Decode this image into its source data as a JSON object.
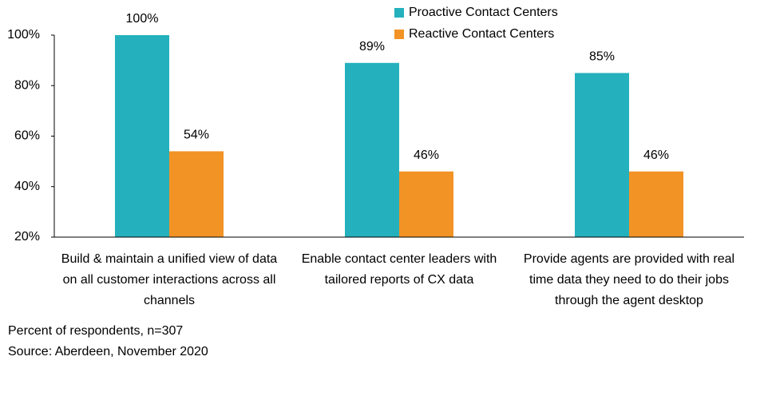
{
  "chart_data": {
    "type": "bar",
    "categories": [
      "Build & maintain a unified view of data on all customer interactions across all channels",
      "Enable contact center leaders with tailored reports of CX data",
      "Provide agents are provided with real time data they need to do their jobs through the agent desktop"
    ],
    "series": [
      {
        "name": "Proactive Contact Centers",
        "color": "#24b1bd",
        "values": [
          100,
          89,
          85
        ],
        "value_labels": [
          "100%",
          "89%",
          "85%"
        ]
      },
      {
        "name": "Reactive Contact Centers",
        "color": "#f29325",
        "values": [
          54,
          46,
          46
        ],
        "value_labels": [
          "54%",
          "46%",
          "46%"
        ]
      }
    ],
    "ylim": [
      20,
      100
    ],
    "yticks": [
      {
        "value": 20,
        "label": "20%"
      },
      {
        "value": 40,
        "label": "40%"
      },
      {
        "value": 60,
        "label": "60%"
      },
      {
        "value": 80,
        "label": "80%"
      },
      {
        "value": 100,
        "label": "100%"
      }
    ],
    "grid": false,
    "legend": "top",
    "notes": [
      "Percent of respondents, n=307",
      "Source: Aberdeen, November 2020"
    ]
  }
}
